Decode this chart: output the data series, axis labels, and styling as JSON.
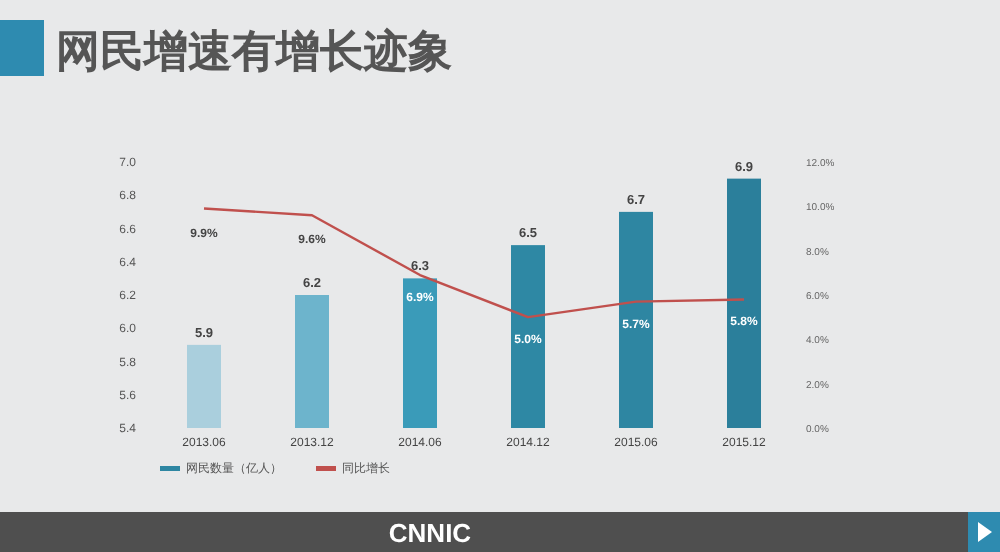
{
  "chart_data": {
    "type": "bar",
    "title": "网民增速有增长迹象",
    "categories": [
      "2013.06",
      "2013.12",
      "2014.06",
      "2014.12",
      "2015.06",
      "2015.12"
    ],
    "series": [
      {
        "name": "网民数量（亿人）",
        "color": "#2e86a2",
        "colors": [
          "#aacfdd",
          "#6db4cc",
          "#3a9bb9",
          "#2e88a4",
          "#2e86a2",
          "#2b7f9b"
        ],
        "values": [
          5.9,
          6.2,
          6.3,
          6.5,
          6.7,
          6.9
        ],
        "data_labels": true
      },
      {
        "name": "同比增长",
        "type": "line",
        "axis": "y2",
        "color": "#c0504d",
        "values": [
          9.9,
          9.6,
          6.9,
          5.0,
          5.7,
          5.8
        ],
        "value_labels": [
          "9.9%",
          "9.6%",
          "6.9%",
          "5.0%",
          "5.7%",
          "5.8%"
        ]
      }
    ],
    "ylim": [
      5.4,
      7.0
    ],
    "yticks": [
      5.4,
      5.6,
      5.8,
      {
        "value": 6,
        "label": "6.0"
      },
      6.2,
      6.4,
      6.6,
      6.8,
      {
        "value": 7,
        "label": "7.0"
      }
    ],
    "y2lim": [
      0,
      12
    ],
    "y2ticks": [
      {
        "value": 0,
        "label": "0.0%"
      },
      {
        "value": 2,
        "label": "2.0%"
      },
      {
        "value": 4,
        "label": "4.0%"
      },
      {
        "value": 6,
        "label": "6.0%"
      },
      {
        "value": 8,
        "label": "8.0%"
      },
      {
        "value": 10,
        "label": "10.0%"
      },
      {
        "value": 12,
        "label": "12.0%"
      }
    ],
    "grid": false,
    "legend": "bottom left",
    "marker": "none",
    "annotations": [
      "CNNIC"
    ]
  }
}
